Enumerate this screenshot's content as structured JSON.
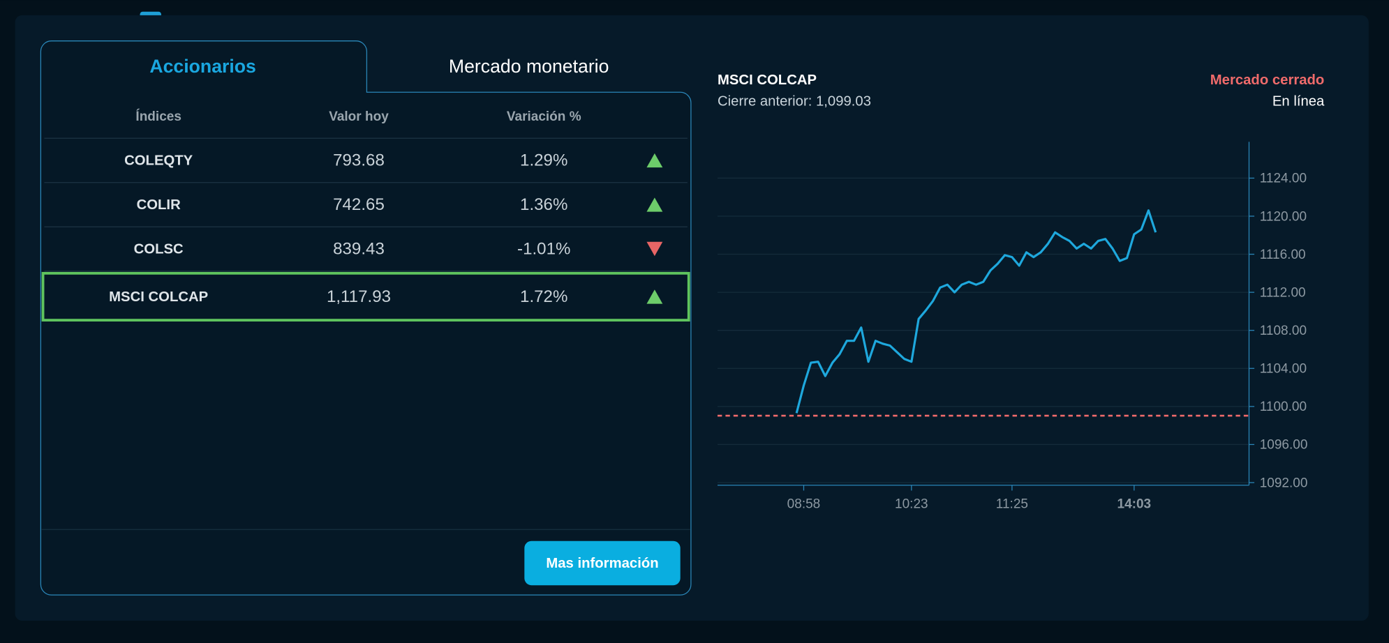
{
  "tabs": [
    "Accionarios",
    "Mercado monetario"
  ],
  "table": {
    "header": [
      "Índices",
      "Valor hoy",
      "Variación %"
    ],
    "rows": [
      [
        "COLEQTY",
        "793.68",
        "1.29%"
      ],
      [
        "COLIR",
        "742.65",
        "1.36%"
      ],
      [
        "COLSC",
        "839.43",
        "-1.01%"
      ],
      [
        "MSCI COLCAP",
        "1,117.93",
        "1.72%"
      ]
    ]
  },
  "button": "Mas información",
  "chart_data": {
    "type": "line",
    "title": "MSCI COLCAP",
    "subtitle": "Cierre anterior: 1,099.03",
    "status": "Mercado cerrado",
    "connection": "En línea",
    "categories": [
      null,
      null,
      null,
      null,
      null,
      null,
      null,
      null,
      null,
      null,
      null,
      null,
      "08:58",
      null,
      null,
      null,
      null,
      null,
      null,
      null,
      null,
      null,
      null,
      null,
      null,
      null,
      null,
      "10:23",
      null,
      null,
      null,
      null,
      null,
      null,
      null,
      null,
      null,
      null,
      null,
      null,
      null,
      "11:25",
      null,
      null,
      null,
      null,
      null,
      null,
      null,
      null,
      null,
      null,
      null,
      null,
      null,
      null,
      null,
      null,
      "14:03",
      null,
      null,
      null,
      null,
      null,
      null,
      null,
      null,
      null,
      null,
      null,
      null,
      null,
      null,
      null,
      null
    ],
    "values": [
      null,
      null,
      null,
      null,
      null,
      null,
      null,
      null,
      null,
      null,
      null,
      1099.3,
      1102.2,
      1104.6,
      1104.7,
      1103.2,
      1104.6,
      1105.5,
      1106.9,
      1106.9,
      1108.3,
      1104.7,
      1106.9,
      1106.6,
      1106.4,
      1105.7,
      1105.0,
      1104.7,
      1109.2,
      1110.1,
      1111.1,
      1112.5,
      1112.8,
      1112.0,
      1112.8,
      1113.1,
      1112.8,
      1113.1,
      1114.3,
      1115.0,
      1115.9,
      1115.7,
      1114.8,
      1116.2,
      1115.7,
      1116.2,
      1117.1,
      1118.3,
      1117.8,
      1117.4,
      1116.6,
      1117.1,
      1116.6,
      1117.4,
      1117.6,
      1116.6,
      1115.3,
      1115.6,
      1118.1,
      1118.6,
      1120.6,
      1118.3,
      null,
      null,
      null,
      null,
      null,
      null,
      null,
      null,
      null,
      null,
      null,
      null,
      null
    ],
    "color": "#1ea8dd",
    "reference_line": {
      "value": 1099.03,
      "color": "#f06b6b"
    },
    "ylim": [
      1092,
      1128
    ],
    "yticks": [
      {
        "value": 1092,
        "label": "1092.00"
      },
      {
        "value": 1096,
        "label": "1096.00"
      },
      {
        "value": 1100,
        "label": "1100.00"
      },
      {
        "value": 1104,
        "label": "1104.00"
      },
      {
        "value": 1108,
        "label": "1108.00"
      },
      {
        "value": 1112,
        "label": "1112.00"
      },
      {
        "value": 1116,
        "label": "1116.00"
      },
      {
        "value": 1120,
        "label": "1120.00"
      },
      {
        "value": 1124,
        "label": "1124.00"
      }
    ],
    "grid": true
  }
}
